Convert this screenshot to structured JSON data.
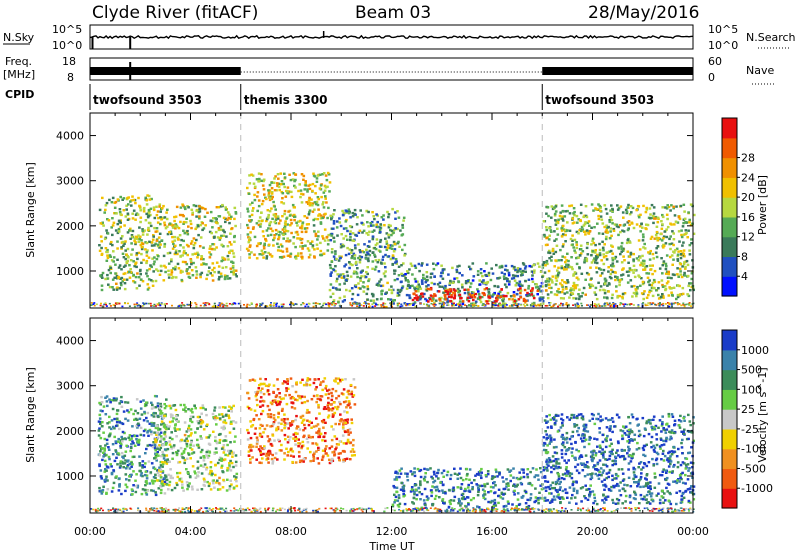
{
  "header": {
    "station": "Clyde River (fitACF)",
    "beam": "Beam 03",
    "date": "28/May/2016"
  },
  "summary": {
    "left_top_label": "N.Sky",
    "left_top_ticks": [
      "10^5",
      "10^0"
    ],
    "left_mid_label": "Freq.",
    "left_mid_unit": "[MHz]",
    "left_mid_ticks": [
      "18",
      "8"
    ],
    "cpid_label": "CPID",
    "right_top_label": "N.Search",
    "right_top_ticks": [
      "10^5",
      "10^0"
    ],
    "right_mid_label": "Nave",
    "right_mid_ticks": [
      "60",
      "0"
    ],
    "cpid_segments": [
      {
        "name": "twofsound 3503",
        "start_hour": 0,
        "end_hour": 6
      },
      {
        "name": "themis 3300",
        "start_hour": 6,
        "end_hour": 18
      },
      {
        "name": "twofsound 3503",
        "start_hour": 18,
        "end_hour": 24
      }
    ]
  },
  "chart_data": [
    {
      "type": "heatmap",
      "ylabel": "Slant Range [km]",
      "yticks": [
        "1000",
        "2000",
        "3000",
        "4000"
      ],
      "ylim": [
        180,
        4500
      ],
      "xlim": [
        0,
        24
      ],
      "colorbar_label": "Power [dB]",
      "colorbar_ticks": [
        "4",
        "8",
        "12",
        "16",
        "20",
        "24",
        "28"
      ],
      "colorbar_colors": [
        "#0010ff",
        "#2050c0",
        "#3a7a5a",
        "#55aa55",
        "#b6d840",
        "#f0c000",
        "#f09000",
        "#f05a00",
        "#e81010"
      ],
      "regions": [
        {
          "x0": 0.3,
          "x1": 2.5,
          "y0": 600,
          "y1": 2700,
          "level": 0.45
        },
        {
          "x0": 2.5,
          "x1": 5.8,
          "y0": 800,
          "y1": 2500,
          "level": 0.5
        },
        {
          "x0": 6.2,
          "x1": 9.5,
          "y0": 1300,
          "y1": 3200,
          "level": 0.55
        },
        {
          "x0": 9.5,
          "x1": 12.5,
          "y0": 300,
          "y1": 2400,
          "level": 0.35
        },
        {
          "x0": 12.5,
          "x1": 18.0,
          "y0": 250,
          "y1": 1200,
          "level": 0.3
        },
        {
          "x0": 18.0,
          "x1": 24.0,
          "y0": 400,
          "y1": 2500,
          "level": 0.45
        },
        {
          "x0": 12.8,
          "x1": 17.8,
          "y0": 350,
          "y1": 650,
          "level": 0.95
        }
      ]
    },
    {
      "type": "heatmap",
      "xlabel": "Time UT",
      "ylabel": "Slant Range [km]",
      "xticks": [
        "00:00",
        "04:00",
        "08:00",
        "12:00",
        "16:00",
        "20:00",
        "00:00"
      ],
      "yticks": [
        "1000",
        "2000",
        "3000",
        "4000"
      ],
      "ylim": [
        180,
        4500
      ],
      "xlim": [
        0,
        24
      ],
      "colorbar_label": "Velocity [m s^-1]",
      "colorbar_ticks": [
        "1000",
        "500",
        "100",
        "25",
        "-25",
        "-100",
        "-500",
        "-1000"
      ],
      "colorbar_colors": [
        "#1a3cc8",
        "#3a82aa",
        "#3c8c5a",
        "#66cc44",
        "#c8c8c8",
        "#f0d000",
        "#f09020",
        "#f05a10",
        "#e81010"
      ],
      "regions": [
        {
          "x0": 0.3,
          "x1": 3.0,
          "y0": 600,
          "y1": 2800,
          "level": 0.25
        },
        {
          "x0": 2.5,
          "x1": 5.8,
          "y0": 700,
          "y1": 2600,
          "level": 0.45
        },
        {
          "x0": 6.2,
          "x1": 10.5,
          "y0": 1300,
          "y1": 3200,
          "level": 0.75
        },
        {
          "x0": 12.0,
          "x1": 18.0,
          "y0": 250,
          "y1": 1200,
          "level": 0.2
        },
        {
          "x0": 18.0,
          "x1": 24.0,
          "y0": 400,
          "y1": 2400,
          "level": 0.15
        }
      ]
    }
  ]
}
